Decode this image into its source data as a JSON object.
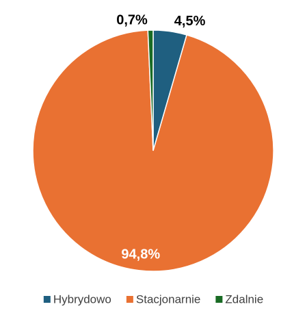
{
  "chart_data": {
    "type": "pie",
    "categories": [
      "Hybrydowo",
      "Stacjonarnie",
      "Zdalnie"
    ],
    "values": [
      4.5,
      94.8,
      0.7
    ],
    "value_labels": [
      "4,5%",
      "94,8%",
      "0,7%"
    ],
    "colors": [
      "#1f5f80",
      "#e97132",
      "#196b24"
    ]
  }
}
